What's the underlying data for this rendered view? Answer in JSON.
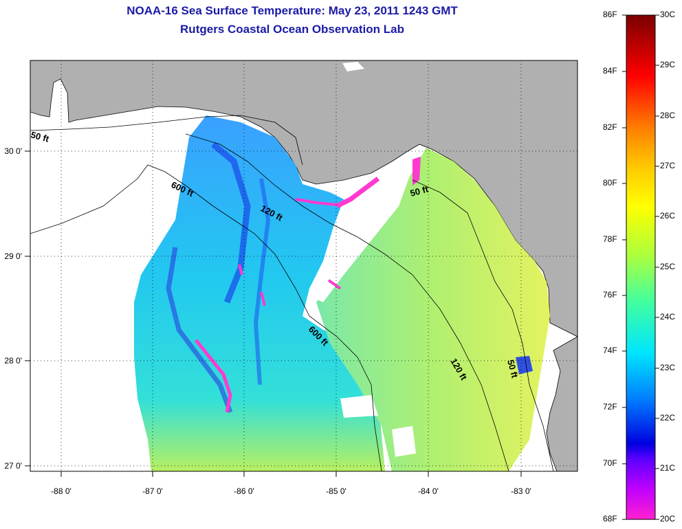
{
  "title": {
    "line1": "NOAA-16 Sea Surface Temperature:  May 23, 2011 1243 GMT",
    "line2": "Rutgers Coastal Ocean Observation Lab"
  },
  "map": {
    "lon_ticks": [
      "-88 0'",
      "-87 0'",
      "-86 0'",
      "-85 0'",
      "-84 0'",
      "-83 0'"
    ],
    "lat_ticks": [
      "30 0'",
      "29 0'",
      "28 0'",
      "27 0'"
    ],
    "contour_labels": [
      "50 ft",
      "600 ft",
      "120 ft",
      "50 ft",
      "600 ft",
      "120 ft",
      "50 ft"
    ],
    "colors": {
      "land": "#b0b0b0",
      "no_data": "#ffffff"
    }
  },
  "colorbar": {
    "f_labels": [
      "86F",
      "84F",
      "82F",
      "80F",
      "78F",
      "76F",
      "74F",
      "72F",
      "70F",
      "68F"
    ],
    "c_labels": [
      "30C",
      "29C",
      "28C",
      "27C",
      "26C",
      "25C",
      "24C",
      "23C",
      "22C",
      "21C",
      "20C"
    ],
    "palette_top_to_bottom": [
      "#7a0000",
      "#ff0000",
      "#ff7a00",
      "#ffe100",
      "#b8ff3a",
      "#3fffa0",
      "#00e5ff",
      "#0060ff",
      "#0000e0",
      "#7a00ff",
      "#ff20d8"
    ]
  }
}
